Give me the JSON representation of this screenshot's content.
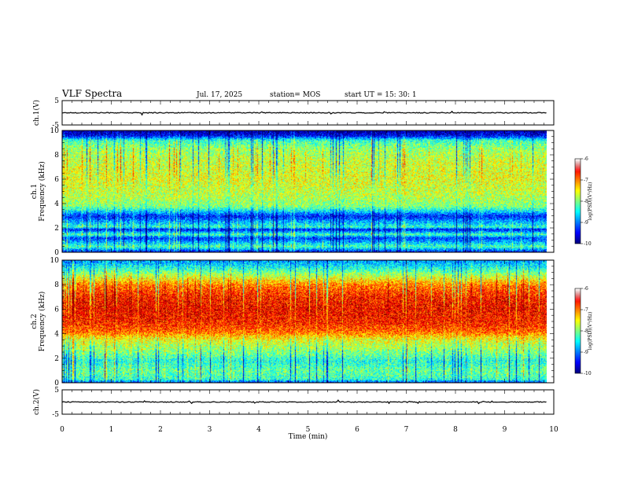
{
  "header": {
    "title": "VLF Spectra",
    "date": "Jul. 17, 2025",
    "station": "station= MOS",
    "start": "start UT =  15: 30: 1"
  },
  "chart_data": [
    {
      "id": "ch1-voltage",
      "type": "line",
      "ylabel": "ch.1(V)",
      "ylim": [
        -5,
        5
      ],
      "yticks": [
        "5",
        "-5"
      ],
      "xlim": [
        0,
        10
      ],
      "x": [
        0,
        9.85
      ],
      "y": [
        0,
        0
      ]
    },
    {
      "id": "ch1-spectrogram",
      "type": "heatmap",
      "ylabel": "ch.1\nFrequency (kHz)",
      "xlim": [
        0,
        10
      ],
      "ylim": [
        0,
        10
      ],
      "yticks": [
        "0",
        "2",
        "4",
        "6",
        "8",
        "10"
      ],
      "data_x_range": [
        0,
        9.85
      ],
      "frequency_profile_kHz": [
        0,
        0.5,
        1.2,
        1.5,
        1.9,
        2.1,
        3.0,
        3.4,
        3.8,
        4.5,
        6.0,
        7.5,
        8.5,
        9.2,
        9.6,
        10
      ],
      "log_psd_profile": [
        -9.6,
        -8.2,
        -9.3,
        -8.2,
        -9.5,
        -8.3,
        -9.4,
        -8.6,
        -8.0,
        -7.8,
        -7.6,
        -7.7,
        -7.9,
        -8.3,
        -9.5,
        -9.9
      ],
      "colorbar": {
        "label": "log(PSD)(V²/Hz)",
        "range": [
          -10,
          -6
        ],
        "ticks": [
          "-6",
          "-7",
          "-8",
          "-9",
          "-10"
        ]
      }
    },
    {
      "id": "ch2-spectrogram",
      "type": "heatmap",
      "ylabel": "ch.2\nFrequency (kHz)",
      "xlim": [
        0,
        10
      ],
      "ylim": [
        0,
        10
      ],
      "yticks": [
        "0",
        "2",
        "4",
        "6",
        "8",
        "10"
      ],
      "data_x_range": [
        0,
        9.85
      ],
      "frequency_profile_kHz": [
        0,
        0.3,
        1.0,
        1.8,
        2.5,
        3.5,
        4.2,
        5.0,
        6.0,
        7.0,
        8.0,
        8.8,
        9.5,
        10
      ],
      "log_psd_profile": [
        -9.4,
        -8.3,
        -8.1,
        -8.4,
        -8.0,
        -7.6,
        -6.9,
        -6.6,
        -6.5,
        -6.6,
        -7.0,
        -7.8,
        -8.5,
        -8.9
      ],
      "colorbar": {
        "label": "log(PSD)(V²/Hz)",
        "range": [
          -10,
          -6
        ],
        "ticks": [
          "-6",
          "-7",
          "-8",
          "-9",
          "-10"
        ]
      }
    },
    {
      "id": "ch2-voltage",
      "type": "line",
      "ylabel": "ch.2(V)",
      "ylim": [
        -5,
        5
      ],
      "yticks": [
        "5",
        "-5"
      ],
      "xlim": [
        0,
        10
      ],
      "x": [
        0,
        9.85
      ],
      "y": [
        0,
        0
      ],
      "xlabel": "Time (min)",
      "xticks": [
        "0",
        "1",
        "2",
        "3",
        "4",
        "5",
        "6",
        "7",
        "8",
        "9",
        "10"
      ]
    }
  ]
}
